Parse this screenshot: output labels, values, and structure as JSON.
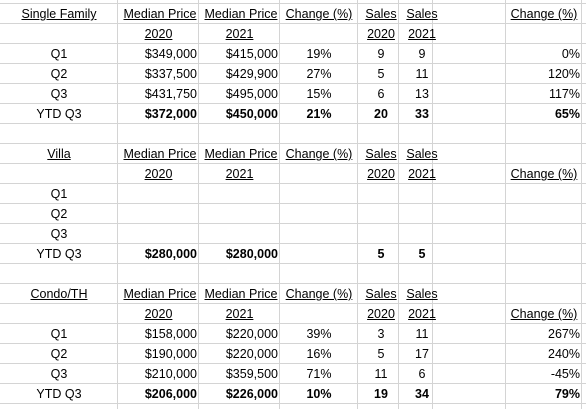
{
  "sections": [
    {
      "title": "Single Family",
      "headers": {
        "median_price": "Median Price",
        "year_2020": "2020",
        "year_2021": "2021",
        "change": "Change (%)",
        "sales": "Sales",
        "sales_change": "Change (%)"
      },
      "rows": [
        {
          "label": "Q1",
          "p2020": "$349,000",
          "p2021": "$415,000",
          "change": "19%",
          "s2020": "9",
          "s2021": "9",
          "schange": "0%"
        },
        {
          "label": "Q2",
          "p2020": "$337,500",
          "p2021": "$429,900",
          "change": "27%",
          "s2020": "5",
          "s2021": "11",
          "schange": "120%"
        },
        {
          "label": "Q3",
          "p2020": "$431,750",
          "p2021": "$495,000",
          "change": "15%",
          "s2020": "6",
          "s2021": "13",
          "schange": "117%"
        },
        {
          "label": "YTD Q3",
          "p2020": "$372,000",
          "p2021": "$450,000",
          "change": "21%",
          "s2020": "20",
          "s2021": "33",
          "schange": "65%"
        }
      ]
    },
    {
      "title": "Villa",
      "headers": {
        "median_price": "Median Price",
        "year_2020": "2020",
        "year_2021": "2021",
        "change": "Change (%)",
        "sales": "Sales",
        "sales_change": "Change (%)"
      },
      "rows": [
        {
          "label": "Q1",
          "p2020": "",
          "p2021": "",
          "change": "",
          "s2020": "",
          "s2021": "",
          "schange": ""
        },
        {
          "label": "Q2",
          "p2020": "",
          "p2021": "",
          "change": "",
          "s2020": "",
          "s2021": "",
          "schange": ""
        },
        {
          "label": "Q3",
          "p2020": "",
          "p2021": "",
          "change": "",
          "s2020": "",
          "s2021": "",
          "schange": ""
        },
        {
          "label": "YTD Q3",
          "p2020": "$280,000",
          "p2021": "$280,000",
          "change": "",
          "s2020": "5",
          "s2021": "5",
          "schange": ""
        }
      ]
    },
    {
      "title": "Condo/TH",
      "headers": {
        "median_price": "Median Price",
        "year_2020": "2020",
        "year_2021": "2021",
        "change": "Change (%)",
        "sales": "Sales",
        "sales_change": "Change (%)"
      },
      "rows": [
        {
          "label": "Q1",
          "p2020": "$158,000",
          "p2021": "$220,000",
          "change": "39%",
          "s2020": "3",
          "s2021": "11",
          "schange": "267%"
        },
        {
          "label": "Q2",
          "p2020": "$190,000",
          "p2021": "$220,000",
          "change": "16%",
          "s2020": "5",
          "s2021": "17",
          "schange": "240%"
        },
        {
          "label": "Q3",
          "p2020": "$210,000",
          "p2021": "$359,500",
          "change": "71%",
          "s2020": "11",
          "s2021": "6",
          "schange": "-45%"
        },
        {
          "label": "YTD Q3",
          "p2020": "$206,000",
          "p2021": "$226,000",
          "change": "10%",
          "s2020": "19",
          "s2021": "34",
          "schange": "79%"
        }
      ]
    }
  ],
  "colors": {
    "gridline": "#d4d4d4",
    "text": "#000000",
    "background": "#ffffff"
  }
}
